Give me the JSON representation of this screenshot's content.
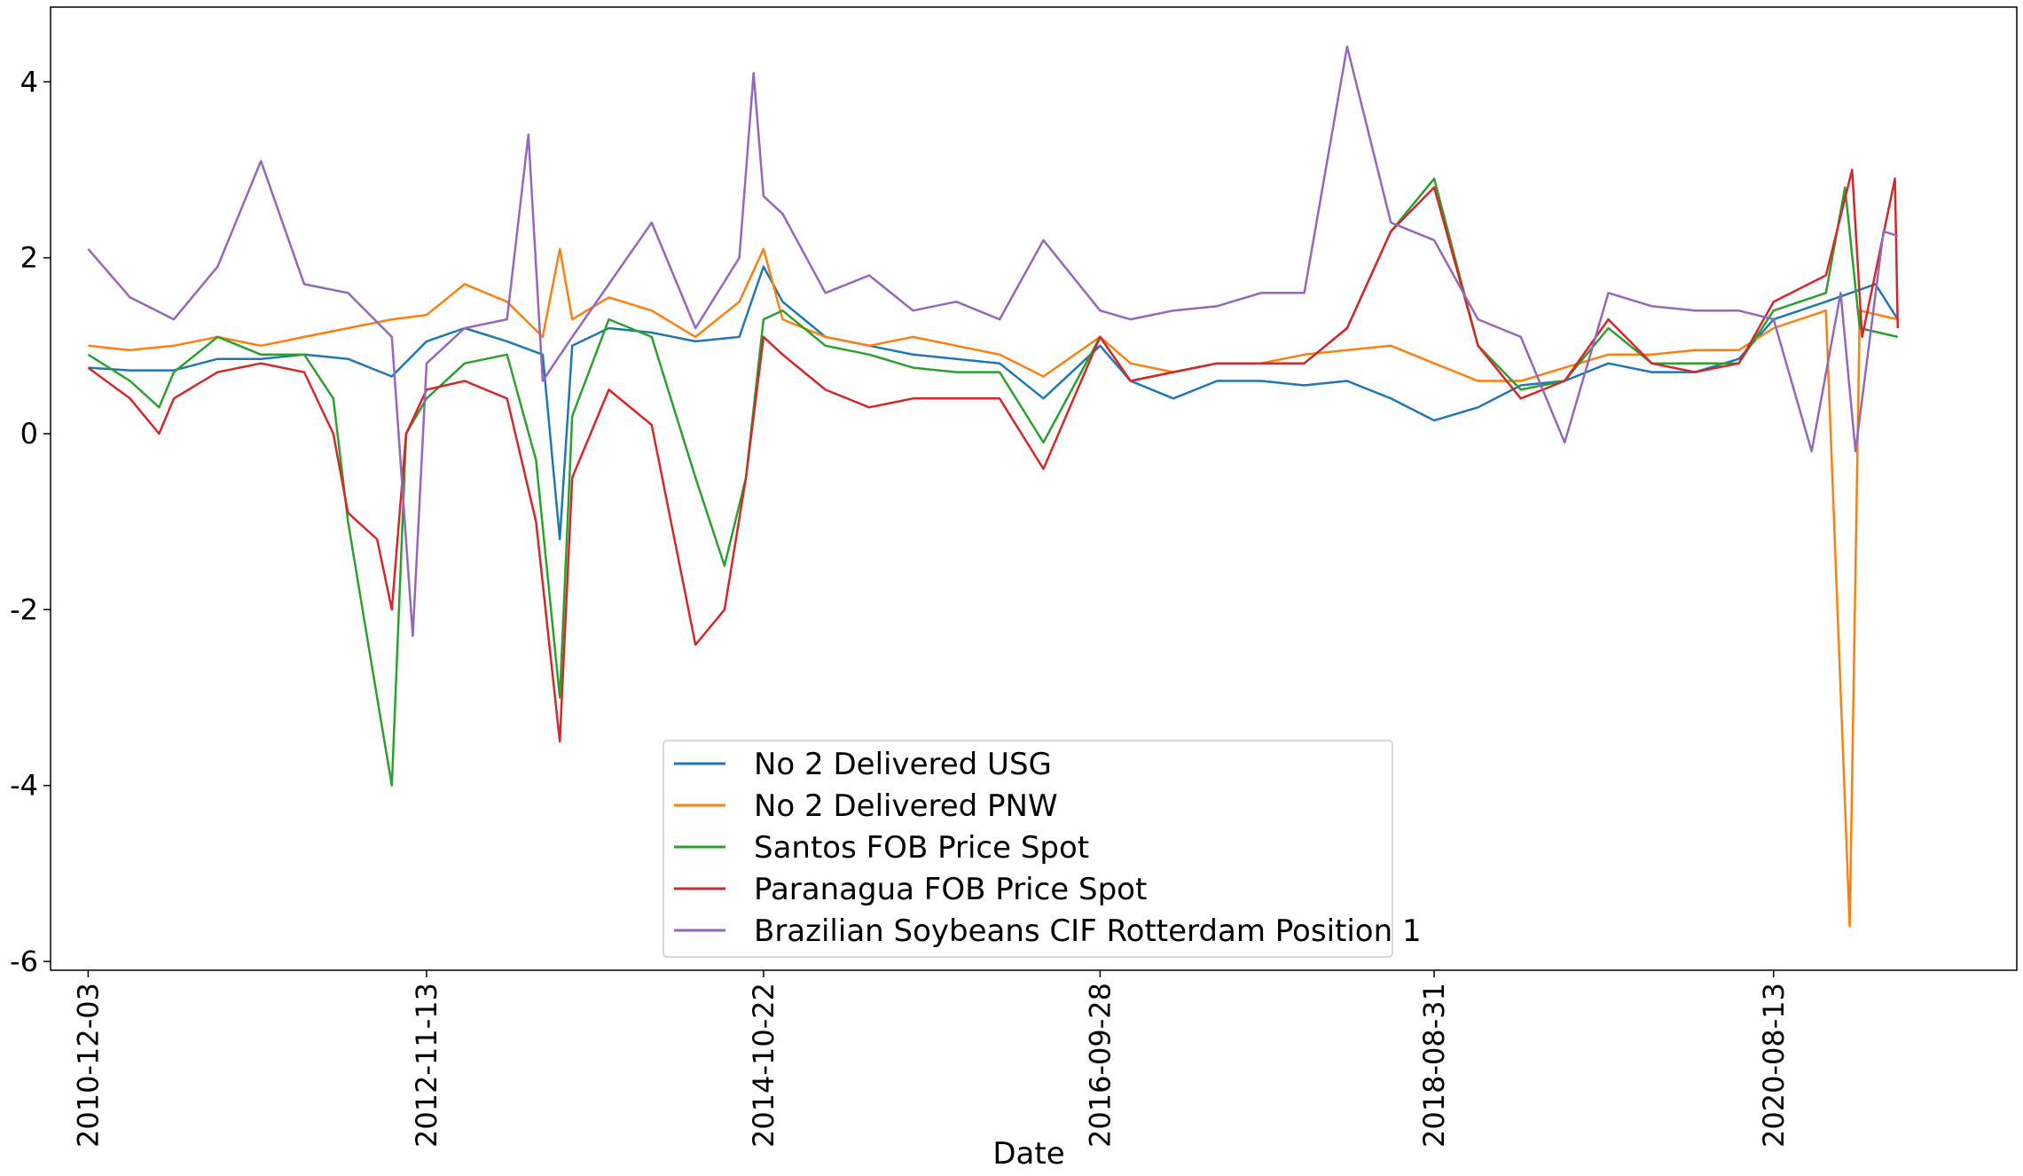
{
  "chart_data": {
    "type": "line",
    "title": "",
    "xlabel": "Date",
    "ylabel": "",
    "x_tick_labels": [
      "2010-12-03",
      "2012-11-13",
      "2014-10-22",
      "2016-09-28",
      "2018-08-31",
      "2020-08-13"
    ],
    "y_ticks": [
      4,
      2,
      0,
      -2,
      -4,
      -6
    ],
    "ylim": [
      -6.1,
      4.85
    ],
    "xlim": [
      "2010-09-15",
      "2022-01-06"
    ],
    "grid": false,
    "legend_position": "lower-center",
    "series": [
      {
        "name": "No 2 Delivered USG",
        "color": "#1f77b4",
        "points": [
          [
            "2010-12-03",
            0.75
          ],
          [
            "2011-03-01",
            0.72
          ],
          [
            "2011-06-01",
            0.72
          ],
          [
            "2011-09-01",
            0.85
          ],
          [
            "2011-12-01",
            0.85
          ],
          [
            "2012-03-01",
            0.9
          ],
          [
            "2012-06-01",
            0.85
          ],
          [
            "2012-09-01",
            0.65
          ],
          [
            "2012-11-13",
            1.05
          ],
          [
            "2013-02-01",
            1.2
          ],
          [
            "2013-05-01",
            1.05
          ],
          [
            "2013-07-15",
            0.9
          ],
          [
            "2013-08-20",
            -1.2
          ],
          [
            "2013-09-15",
            1.0
          ],
          [
            "2013-12-01",
            1.2
          ],
          [
            "2014-03-01",
            1.15
          ],
          [
            "2014-06-01",
            1.05
          ],
          [
            "2014-09-01",
            1.1
          ],
          [
            "2014-10-22",
            1.9
          ],
          [
            "2014-12-01",
            1.5
          ],
          [
            "2015-03-01",
            1.1
          ],
          [
            "2015-06-01",
            1.0
          ],
          [
            "2015-09-01",
            0.9
          ],
          [
            "2015-12-01",
            0.85
          ],
          [
            "2016-03-01",
            0.8
          ],
          [
            "2016-06-01",
            0.4
          ],
          [
            "2016-09-28",
            1.0
          ],
          [
            "2016-12-01",
            0.6
          ],
          [
            "2017-03-01",
            0.4
          ],
          [
            "2017-06-01",
            0.6
          ],
          [
            "2017-09-01",
            0.6
          ],
          [
            "2017-12-01",
            0.55
          ],
          [
            "2018-03-01",
            0.6
          ],
          [
            "2018-06-01",
            0.4
          ],
          [
            "2018-08-31",
            0.15
          ],
          [
            "2018-12-01",
            0.3
          ],
          [
            "2019-03-01",
            0.55
          ],
          [
            "2019-06-01",
            0.6
          ],
          [
            "2019-09-01",
            0.8
          ],
          [
            "2019-12-01",
            0.7
          ],
          [
            "2020-03-01",
            0.7
          ],
          [
            "2020-06-01",
            0.85
          ],
          [
            "2020-08-13",
            1.3
          ],
          [
            "2020-12-01",
            1.5
          ],
          [
            "2021-03-15",
            1.7
          ],
          [
            "2021-05-01",
            1.3
          ]
        ]
      },
      {
        "name": "No 2 Delivered PNW",
        "color": "#ff7f0e",
        "points": [
          [
            "2010-12-03",
            1.0
          ],
          [
            "2011-03-01",
            0.95
          ],
          [
            "2011-06-01",
            1.0
          ],
          [
            "2011-09-01",
            1.1
          ],
          [
            "2011-12-01",
            1.0
          ],
          [
            "2012-03-01",
            1.1
          ],
          [
            "2012-06-01",
            1.2
          ],
          [
            "2012-09-01",
            1.3
          ],
          [
            "2012-11-13",
            1.35
          ],
          [
            "2013-02-01",
            1.7
          ],
          [
            "2013-05-01",
            1.5
          ],
          [
            "2013-07-15",
            1.1
          ],
          [
            "2013-08-20",
            2.1
          ],
          [
            "2013-09-15",
            1.3
          ],
          [
            "2013-12-01",
            1.55
          ],
          [
            "2014-03-01",
            1.4
          ],
          [
            "2014-06-01",
            1.1
          ],
          [
            "2014-09-01",
            1.5
          ],
          [
            "2014-10-22",
            2.1
          ],
          [
            "2014-12-01",
            1.3
          ],
          [
            "2015-03-01",
            1.1
          ],
          [
            "2015-06-01",
            1.0
          ],
          [
            "2015-09-01",
            1.1
          ],
          [
            "2015-12-01",
            1.0
          ],
          [
            "2016-03-01",
            0.9
          ],
          [
            "2016-06-01",
            0.65
          ],
          [
            "2016-09-28",
            1.1
          ],
          [
            "2016-12-01",
            0.8
          ],
          [
            "2017-03-01",
            0.7
          ],
          [
            "2017-06-01",
            0.8
          ],
          [
            "2017-09-01",
            0.8
          ],
          [
            "2017-12-01",
            0.9
          ],
          [
            "2018-03-01",
            0.95
          ],
          [
            "2018-06-01",
            1.0
          ],
          [
            "2018-08-31",
            0.8
          ],
          [
            "2018-12-01",
            0.6
          ],
          [
            "2019-03-01",
            0.6
          ],
          [
            "2019-06-01",
            0.75
          ],
          [
            "2019-09-01",
            0.9
          ],
          [
            "2019-12-01",
            0.9
          ],
          [
            "2020-03-01",
            0.95
          ],
          [
            "2020-06-01",
            0.95
          ],
          [
            "2020-08-13",
            1.2
          ],
          [
            "2020-12-01",
            1.4
          ],
          [
            "2021-01-20",
            -5.6
          ],
          [
            "2021-02-10",
            1.4
          ],
          [
            "2021-05-01",
            1.3
          ]
        ]
      },
      {
        "name": "Santos FOB Price Spot",
        "color": "#2ca02c",
        "points": [
          [
            "2010-12-03",
            0.9
          ],
          [
            "2011-03-01",
            0.6
          ],
          [
            "2011-05-01",
            0.3
          ],
          [
            "2011-06-01",
            0.7
          ],
          [
            "2011-09-01",
            1.1
          ],
          [
            "2011-12-01",
            0.9
          ],
          [
            "2012-03-01",
            0.9
          ],
          [
            "2012-05-01",
            0.4
          ],
          [
            "2012-06-01",
            -1.0
          ],
          [
            "2012-08-01",
            -3.0
          ],
          [
            "2012-09-01",
            -4.0
          ],
          [
            "2012-10-01",
            0.0
          ],
          [
            "2012-11-13",
            0.4
          ],
          [
            "2013-02-01",
            0.8
          ],
          [
            "2013-05-01",
            0.9
          ],
          [
            "2013-07-01",
            -0.3
          ],
          [
            "2013-08-20",
            -3.0
          ],
          [
            "2013-09-15",
            0.2
          ],
          [
            "2013-12-01",
            1.3
          ],
          [
            "2014-03-01",
            1.1
          ],
          [
            "2014-06-01",
            -0.5
          ],
          [
            "2014-08-01",
            -1.5
          ],
          [
            "2014-09-15",
            -0.5
          ],
          [
            "2014-10-22",
            1.3
          ],
          [
            "2014-12-01",
            1.4
          ],
          [
            "2015-03-01",
            1.0
          ],
          [
            "2015-06-01",
            0.9
          ],
          [
            "2015-09-01",
            0.75
          ],
          [
            "2015-12-01",
            0.7
          ],
          [
            "2016-03-01",
            0.7
          ],
          [
            "2016-06-01",
            -0.1
          ],
          [
            "2016-09-28",
            1.1
          ],
          [
            "2016-12-01",
            0.6
          ],
          [
            "2017-03-01",
            0.7
          ],
          [
            "2017-06-01",
            0.8
          ],
          [
            "2017-09-01",
            0.8
          ],
          [
            "2017-12-01",
            0.8
          ],
          [
            "2018-03-01",
            1.2
          ],
          [
            "2018-06-01",
            2.3
          ],
          [
            "2018-08-31",
            2.9
          ],
          [
            "2018-12-01",
            1.0
          ],
          [
            "2019-03-01",
            0.5
          ],
          [
            "2019-06-01",
            0.6
          ],
          [
            "2019-09-01",
            1.2
          ],
          [
            "2019-12-01",
            0.8
          ],
          [
            "2020-03-01",
            0.8
          ],
          [
            "2020-06-01",
            0.8
          ],
          [
            "2020-08-13",
            1.4
          ],
          [
            "2020-12-01",
            1.6
          ],
          [
            "2021-01-10",
            2.8
          ],
          [
            "2021-02-10",
            1.2
          ],
          [
            "2021-05-01",
            1.1
          ]
        ]
      },
      {
        "name": "Paranagua FOB Price Spot",
        "color": "#d62728",
        "points": [
          [
            "2010-12-03",
            0.75
          ],
          [
            "2011-03-01",
            0.4
          ],
          [
            "2011-05-01",
            0.0
          ],
          [
            "2011-06-01",
            0.4
          ],
          [
            "2011-09-01",
            0.7
          ],
          [
            "2011-12-01",
            0.8
          ],
          [
            "2012-03-01",
            0.7
          ],
          [
            "2012-05-01",
            0.0
          ],
          [
            "2012-06-01",
            -0.9
          ],
          [
            "2012-08-01",
            -1.2
          ],
          [
            "2012-09-01",
            -2.0
          ],
          [
            "2012-10-01",
            0.0
          ],
          [
            "2012-11-13",
            0.5
          ],
          [
            "2013-02-01",
            0.6
          ],
          [
            "2013-05-01",
            0.4
          ],
          [
            "2013-07-01",
            -1.0
          ],
          [
            "2013-08-20",
            -3.5
          ],
          [
            "2013-09-15",
            -0.5
          ],
          [
            "2013-12-01",
            0.5
          ],
          [
            "2014-03-01",
            0.1
          ],
          [
            "2014-06-01",
            -2.4
          ],
          [
            "2014-08-01",
            -2.0
          ],
          [
            "2014-09-15",
            -0.5
          ],
          [
            "2014-10-22",
            1.1
          ],
          [
            "2014-12-01",
            0.9
          ],
          [
            "2015-03-01",
            0.5
          ],
          [
            "2015-06-01",
            0.3
          ],
          [
            "2015-09-01",
            0.4
          ],
          [
            "2015-12-01",
            0.4
          ],
          [
            "2016-03-01",
            0.4
          ],
          [
            "2016-06-01",
            -0.4
          ],
          [
            "2016-09-28",
            1.1
          ],
          [
            "2016-12-01",
            0.6
          ],
          [
            "2017-03-01",
            0.7
          ],
          [
            "2017-06-01",
            0.8
          ],
          [
            "2017-09-01",
            0.8
          ],
          [
            "2017-12-01",
            0.8
          ],
          [
            "2018-03-01",
            1.2
          ],
          [
            "2018-06-01",
            2.3
          ],
          [
            "2018-08-31",
            2.8
          ],
          [
            "2018-12-01",
            1.0
          ],
          [
            "2019-03-01",
            0.4
          ],
          [
            "2019-06-01",
            0.6
          ],
          [
            "2019-09-01",
            1.3
          ],
          [
            "2019-12-01",
            0.8
          ],
          [
            "2020-03-01",
            0.7
          ],
          [
            "2020-06-01",
            0.8
          ],
          [
            "2020-08-13",
            1.5
          ],
          [
            "2020-12-01",
            1.8
          ],
          [
            "2021-01-25",
            3.0
          ],
          [
            "2021-02-15",
            1.1
          ],
          [
            "2021-04-25",
            2.9
          ],
          [
            "2021-05-01",
            1.2
          ]
        ]
      },
      {
        "name": "Brazilian Soybeans CIF Rotterdam Position 1",
        "color": "#9467bd",
        "points": [
          [
            "2010-12-03",
            2.1
          ],
          [
            "2011-03-01",
            1.55
          ],
          [
            "2011-06-01",
            1.3
          ],
          [
            "2011-09-01",
            1.9
          ],
          [
            "2011-12-01",
            3.1
          ],
          [
            "2012-03-01",
            1.7
          ],
          [
            "2012-06-01",
            1.6
          ],
          [
            "2012-09-01",
            1.1
          ],
          [
            "2012-10-15",
            -2.3
          ],
          [
            "2012-11-13",
            0.8
          ],
          [
            "2013-02-01",
            1.2
          ],
          [
            "2013-05-01",
            1.3
          ],
          [
            "2013-06-15",
            3.4
          ],
          [
            "2013-07-15",
            0.6
          ],
          [
            "2013-09-15",
            1.1
          ],
          [
            "2013-12-01",
            1.7
          ],
          [
            "2014-03-01",
            2.4
          ],
          [
            "2014-06-01",
            1.2
          ],
          [
            "2014-09-01",
            2.0
          ],
          [
            "2014-10-01",
            4.1
          ],
          [
            "2014-10-22",
            2.7
          ],
          [
            "2014-12-01",
            2.5
          ],
          [
            "2015-03-01",
            1.6
          ],
          [
            "2015-06-01",
            1.8
          ],
          [
            "2015-09-01",
            1.4
          ],
          [
            "2015-12-01",
            1.5
          ],
          [
            "2016-03-01",
            1.3
          ],
          [
            "2016-06-01",
            2.2
          ],
          [
            "2016-09-28",
            1.4
          ],
          [
            "2016-12-01",
            1.3
          ],
          [
            "2017-03-01",
            1.4
          ],
          [
            "2017-06-01",
            1.45
          ],
          [
            "2017-09-01",
            1.6
          ],
          [
            "2017-12-01",
            1.6
          ],
          [
            "2018-03-01",
            4.4
          ],
          [
            "2018-06-01",
            2.4
          ],
          [
            "2018-08-31",
            2.2
          ],
          [
            "2018-12-01",
            1.3
          ],
          [
            "2019-03-01",
            1.1
          ],
          [
            "2019-06-01",
            -0.1
          ],
          [
            "2019-09-01",
            1.6
          ],
          [
            "2019-12-01",
            1.45
          ],
          [
            "2020-03-01",
            1.4
          ],
          [
            "2020-06-01",
            1.4
          ],
          [
            "2020-08-13",
            1.3
          ],
          [
            "2020-11-01",
            -0.2
          ],
          [
            "2021-01-01",
            1.6
          ],
          [
            "2021-02-01",
            -0.2
          ],
          [
            "2021-04-01",
            2.3
          ],
          [
            "2021-05-01",
            2.25
          ]
        ]
      }
    ]
  }
}
